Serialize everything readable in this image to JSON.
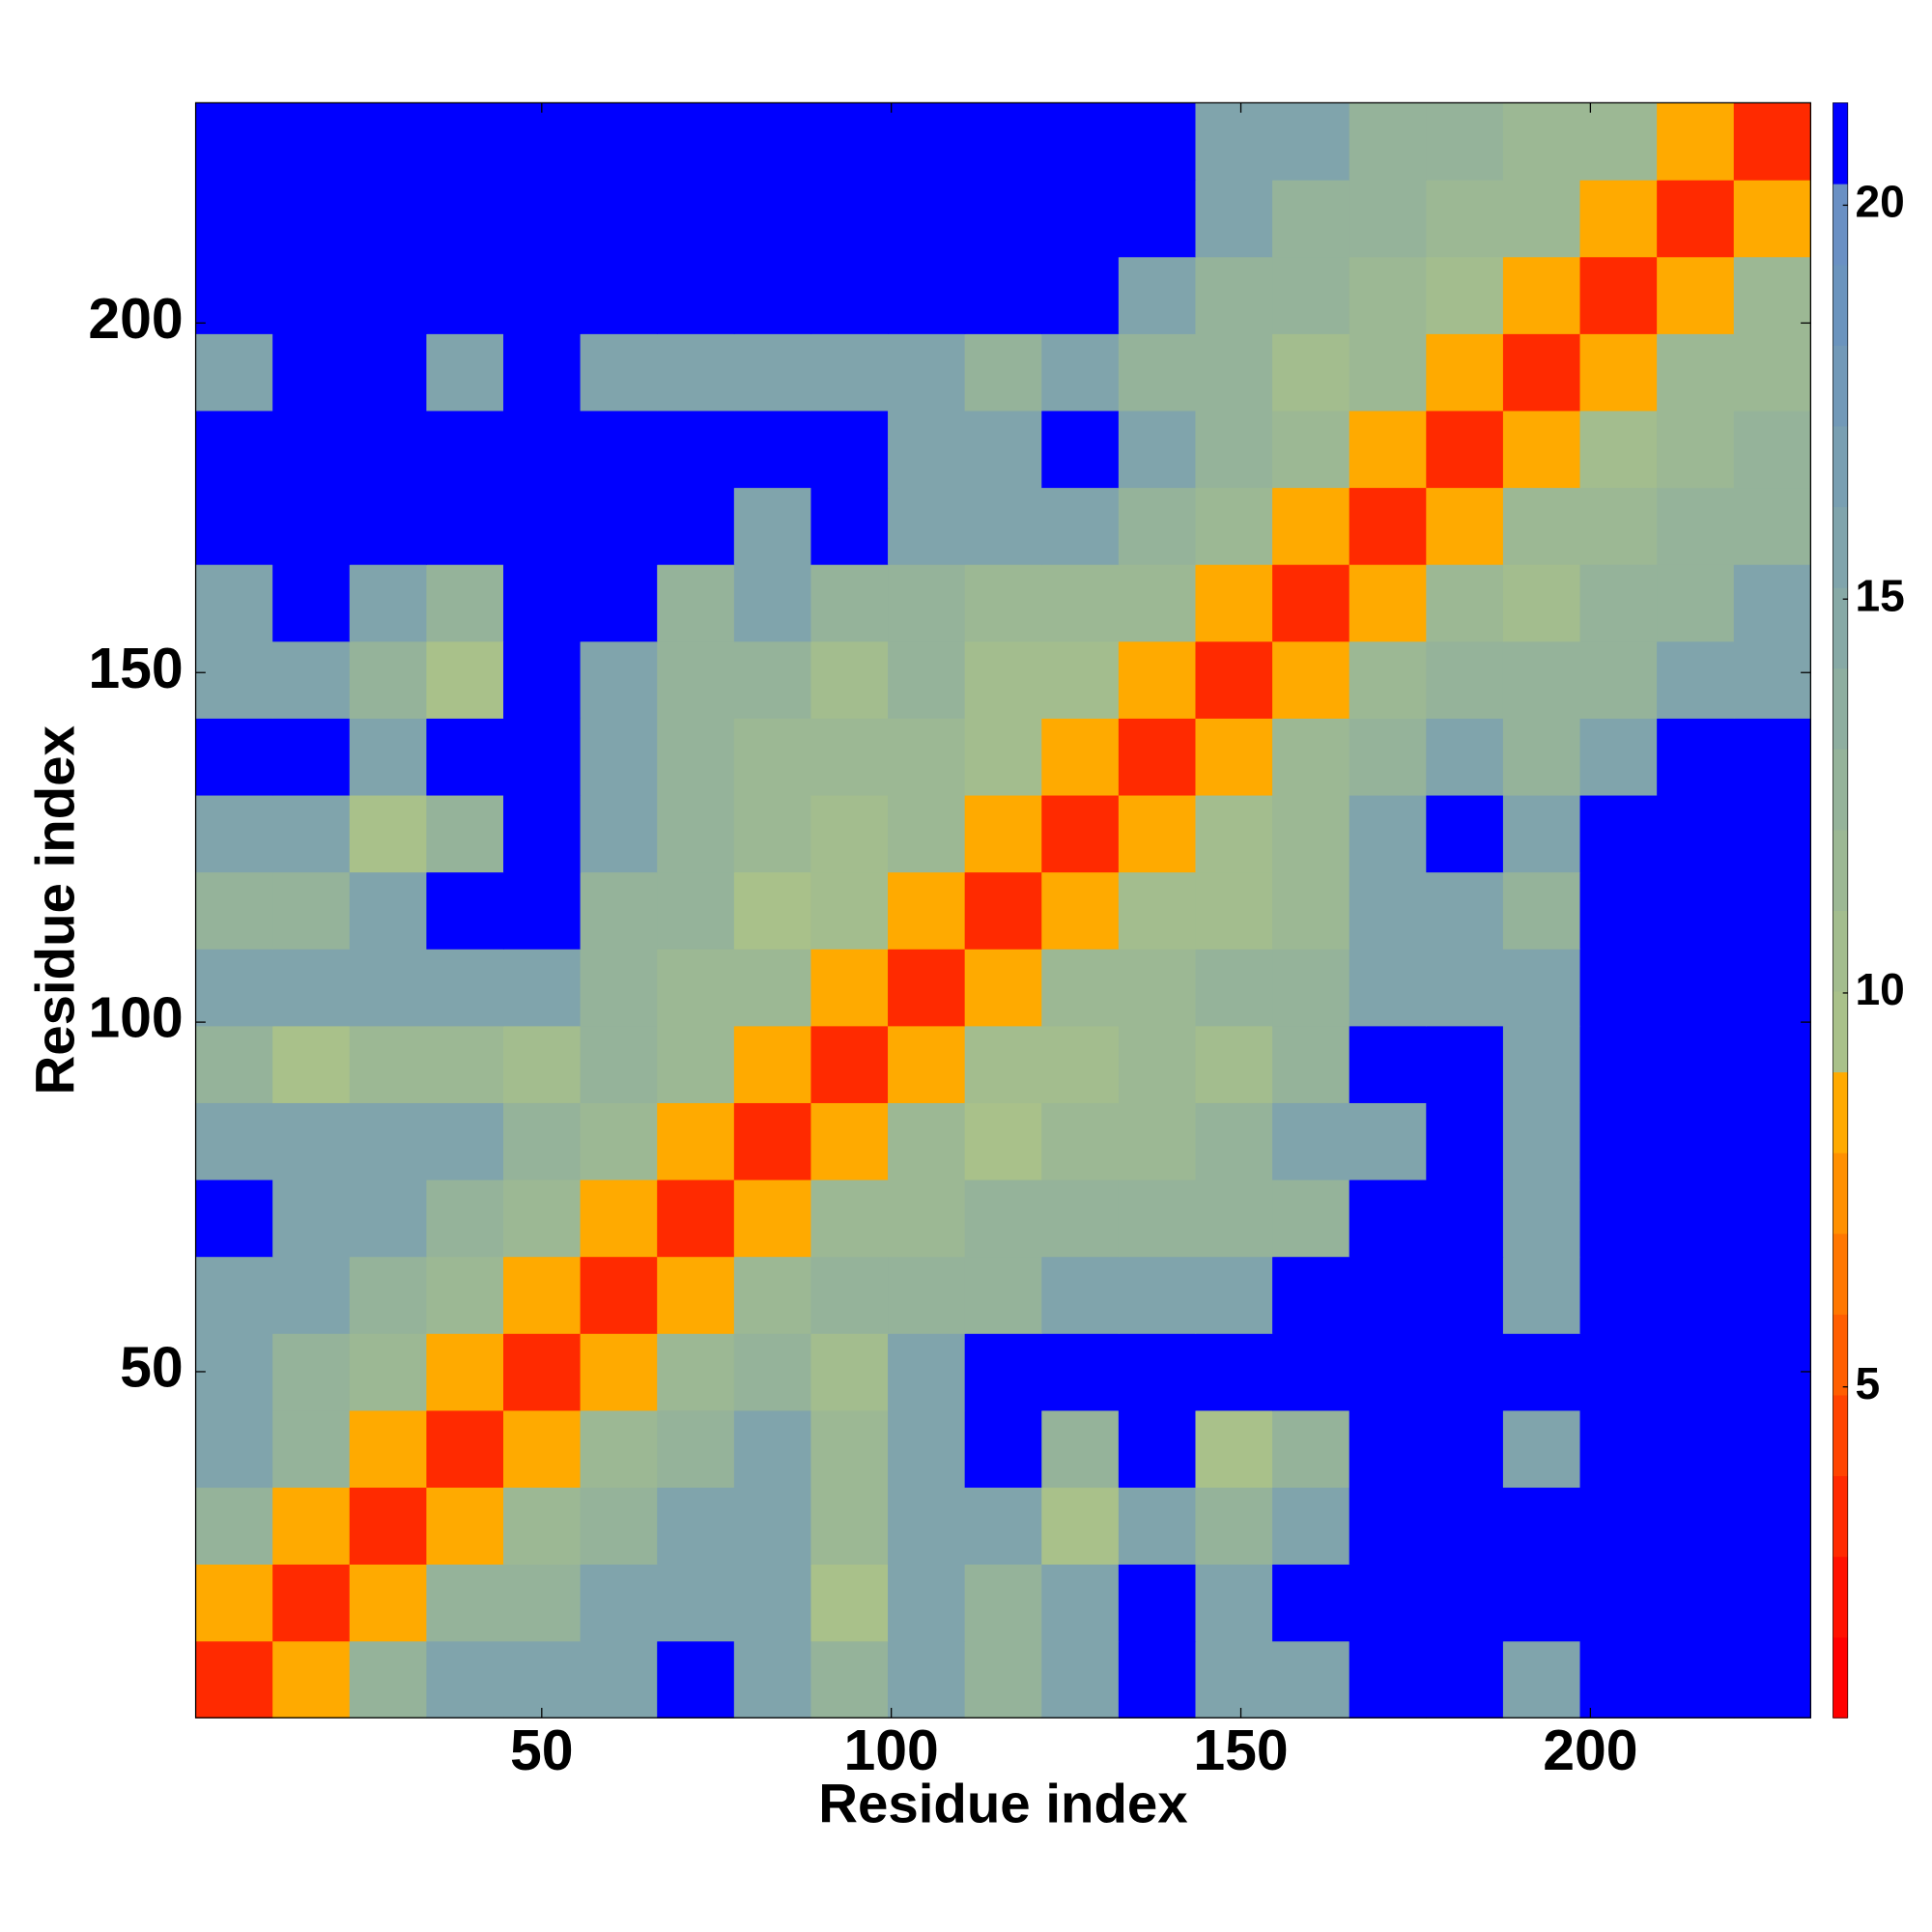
{
  "chart_data": {
    "type": "heatmap",
    "x_label": "Residue index",
    "y_label": "Residue index",
    "bins": [
      0.5,
      11.5,
      22.5,
      33.5,
      44.5,
      55.5,
      66.5,
      77.5,
      88.5,
      99.5,
      110.5,
      121.5,
      132.5,
      143.5,
      154.5,
      165.5,
      176.5,
      187.5,
      198.5,
      209.5,
      220.5,
      231.5
    ],
    "xlim": [
      0.5,
      231.5
    ],
    "ylim": [
      0.5,
      231.5
    ],
    "xticks": [
      50,
      100,
      150,
      200
    ],
    "yticks": [
      50,
      100,
      150,
      200
    ],
    "zlim": [
      0.8,
      21.3
    ],
    "zticks": [
      5,
      10,
      15,
      20
    ],
    "colors": [
      "#ff0000",
      "#ff1100",
      "#ff2a00",
      "#ff4400",
      "#ff5e00",
      "#ff7700",
      "#ff9000",
      "#ffaa00",
      "#a9c18a",
      "#a3bd8e",
      "#9cb894",
      "#95b39a",
      "#8eaea0",
      "#87a9a6",
      "#80a4ac",
      "#799fb2",
      "#7299b8",
      "#6b94be",
      "#6a90c4",
      "#0000ff"
    ],
    "z": [
      [
        3,
        9,
        13,
        16,
        16,
        16,
        21,
        16,
        13,
        16,
        13,
        16,
        21,
        16,
        16,
        21,
        21,
        16,
        21,
        21,
        21
      ],
      [
        9,
        3,
        9,
        13,
        13,
        16,
        16,
        16,
        10,
        16,
        13,
        16,
        21,
        16,
        21,
        21,
        21,
        21,
        21,
        21,
        21
      ],
      [
        13,
        9,
        3,
        9,
        12,
        13,
        16,
        16,
        12,
        16,
        16,
        10,
        16,
        13,
        16,
        21,
        21,
        21,
        21,
        21,
        21
      ],
      [
        16,
        13,
        9,
        3,
        9,
        12,
        13,
        16,
        12,
        16,
        21,
        13,
        21,
        10,
        13,
        21,
        21,
        16,
        21,
        21,
        21
      ],
      [
        16,
        13,
        12,
        9,
        3,
        9,
        12,
        13,
        11,
        16,
        21,
        21,
        21,
        21,
        21,
        21,
        21,
        21,
        21,
        21,
        21
      ],
      [
        16,
        16,
        13,
        12,
        9,
        3,
        9,
        12,
        13,
        13,
        13,
        16,
        16,
        16,
        21,
        21,
        21,
        16,
        21,
        21,
        21
      ],
      [
        21,
        16,
        16,
        13,
        12,
        9,
        3,
        9,
        12,
        12,
        13,
        13,
        13,
        13,
        13,
        21,
        21,
        16,
        21,
        21,
        21
      ],
      [
        16,
        16,
        16,
        16,
        13,
        12,
        9,
        3,
        9,
        12,
        10,
        12,
        12,
        13,
        16,
        16,
        21,
        16,
        21,
        21,
        21
      ],
      [
        13,
        10,
        12,
        12,
        11,
        13,
        12,
        9,
        3,
        9,
        11,
        11,
        12,
        11,
        13,
        21,
        21,
        16,
        21,
        21,
        21
      ],
      [
        16,
        16,
        16,
        16,
        16,
        13,
        12,
        12,
        9,
        3,
        9,
        12,
        12,
        13,
        13,
        16,
        16,
        16,
        21,
        21,
        21
      ],
      [
        13,
        13,
        16,
        21,
        21,
        13,
        13,
        10,
        11,
        9,
        3,
        9,
        11,
        11,
        12,
        16,
        16,
        13,
        21,
        21,
        21
      ],
      [
        16,
        16,
        10,
        13,
        21,
        16,
        13,
        12,
        11,
        12,
        9,
        3,
        9,
        11,
        12,
        16,
        21,
        16,
        21,
        21,
        21
      ],
      [
        21,
        21,
        16,
        21,
        21,
        16,
        13,
        12,
        12,
        12,
        11,
        9,
        3,
        9,
        12,
        13,
        16,
        13,
        16,
        21,
        21
      ],
      [
        16,
        16,
        13,
        10,
        21,
        16,
        13,
        13,
        11,
        13,
        11,
        11,
        9,
        3,
        9,
        12,
        13,
        13,
        13,
        16,
        16
      ],
      [
        16,
        21,
        16,
        13,
        21,
        21,
        13,
        16,
        13,
        13,
        12,
        12,
        12,
        9,
        3,
        9,
        12,
        11,
        13,
        13,
        16
      ],
      [
        21,
        21,
        21,
        21,
        21,
        21,
        21,
        16,
        21,
        16,
        16,
        16,
        13,
        12,
        9,
        3,
        9,
        12,
        12,
        13,
        13
      ],
      [
        21,
        21,
        21,
        21,
        21,
        21,
        21,
        21,
        21,
        16,
        16,
        21,
        16,
        13,
        12,
        9,
        3,
        9,
        11,
        12,
        13
      ],
      [
        16,
        21,
        21,
        16,
        21,
        16,
        16,
        16,
        16,
        16,
        13,
        16,
        13,
        13,
        11,
        12,
        9,
        3,
        9,
        12,
        12
      ],
      [
        21,
        21,
        21,
        21,
        21,
        21,
        21,
        21,
        21,
        21,
        21,
        21,
        16,
        13,
        13,
        12,
        11,
        9,
        3,
        9,
        12
      ],
      [
        21,
        21,
        21,
        21,
        21,
        21,
        21,
        21,
        21,
        21,
        21,
        21,
        21,
        16,
        13,
        13,
        12,
        12,
        9,
        3,
        9
      ],
      [
        21,
        21,
        21,
        21,
        21,
        21,
        21,
        21,
        21,
        21,
        21,
        21,
        21,
        16,
        16,
        13,
        13,
        12,
        12,
        9,
        3
      ]
    ]
  }
}
